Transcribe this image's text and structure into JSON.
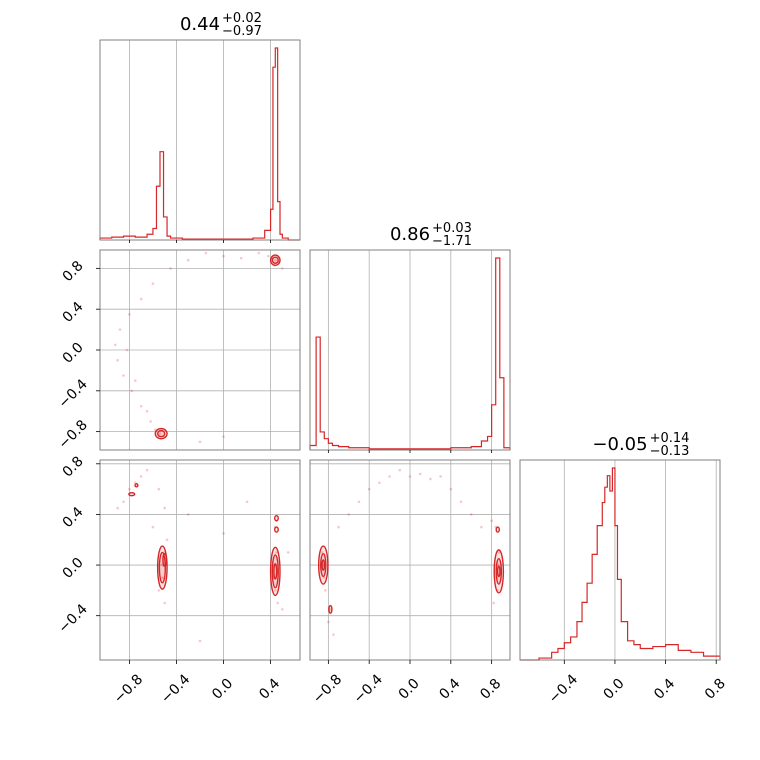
{
  "chart_data": {
    "type": "corner",
    "color": "#d62728",
    "grid": true,
    "parameters": [
      {
        "title_value": "0.44",
        "title_plus": "+0.02",
        "title_minus": "−0.97",
        "range": [
          -1.05,
          0.65
        ]
      },
      {
        "title_value": "0.86",
        "title_plus": "+0.03",
        "title_minus": "−1.71",
        "range": [
          -0.98,
          0.98
        ]
      },
      {
        "title_value": "−0.05",
        "title_plus": "+0.14",
        "title_minus": "−0.13",
        "range": [
          -0.75,
          0.83
        ]
      }
    ],
    "axis_ticks": {
      "p0": {
        "values": [
          -0.8,
          -0.4,
          0.0,
          0.4
        ],
        "labels": [
          "−0.8",
          "−0.4",
          "0.0",
          "0.4"
        ]
      },
      "p1": {
        "values": [
          -0.8,
          -0.4,
          0.0,
          0.4,
          0.8
        ],
        "labels": [
          "−0.8",
          "−0.4",
          "0.0",
          "0.4",
          "0.8"
        ]
      },
      "p2_x": {
        "values": [
          -0.4,
          0.0,
          0.4,
          0.8
        ],
        "labels": [
          "−0.4",
          "0.0",
          "0.4",
          "0.8"
        ]
      },
      "p2_y": {
        "values": [
          -0.4,
          0.0,
          0.4,
          0.8
        ],
        "labels": [
          "−0.4",
          "0.0",
          "0.4",
          "0.8"
        ]
      }
    },
    "histograms": {
      "p0": {
        "bins": [
          -1.05,
          -0.95,
          -0.85,
          -0.75,
          -0.65,
          -0.6,
          -0.57,
          -0.54,
          -0.51,
          -0.48,
          -0.45,
          -0.35,
          -0.25,
          -0.1,
          0.1,
          0.25,
          0.35,
          0.4,
          0.42,
          0.44,
          0.46,
          0.48,
          0.5,
          0.55,
          0.65
        ],
        "counts": [
          0.01,
          0.015,
          0.02,
          0.015,
          0.03,
          0.06,
          0.28,
          0.46,
          0.12,
          0.02,
          0.01,
          0.005,
          0.005,
          0.005,
          0.005,
          0.01,
          0.05,
          0.16,
          0.9,
          1.0,
          0.2,
          0.03,
          0.01,
          0.0
        ]
      },
      "p1": {
        "bins": [
          -0.98,
          -0.92,
          -0.88,
          -0.84,
          -0.8,
          -0.76,
          -0.7,
          -0.6,
          -0.4,
          -0.2,
          0.0,
          0.2,
          0.4,
          0.6,
          0.7,
          0.76,
          0.8,
          0.84,
          0.88,
          0.92,
          0.98
        ],
        "counts": [
          0.02,
          0.5,
          0.08,
          0.05,
          0.03,
          0.02,
          0.015,
          0.01,
          0.005,
          0.005,
          0.005,
          0.005,
          0.01,
          0.015,
          0.04,
          0.06,
          0.2,
          0.85,
          0.32,
          0.01
        ]
      },
      "p2": {
        "bins": [
          -0.75,
          -0.6,
          -0.5,
          -0.45,
          -0.4,
          -0.35,
          -0.3,
          -0.26,
          -0.22,
          -0.18,
          -0.14,
          -0.1,
          -0.08,
          -0.06,
          -0.04,
          -0.02,
          0.0,
          0.02,
          0.05,
          0.1,
          0.15,
          0.2,
          0.3,
          0.4,
          0.5,
          0.6,
          0.7,
          0.83
        ],
        "counts": [
          0.0,
          0.01,
          0.04,
          0.06,
          0.09,
          0.12,
          0.2,
          0.3,
          0.4,
          0.55,
          0.7,
          0.82,
          0.9,
          0.96,
          0.88,
          1.0,
          0.7,
          0.42,
          0.2,
          0.1,
          0.08,
          0.06,
          0.07,
          0.08,
          0.05,
          0.04,
          0.02
        ]
      }
    },
    "scatter": {
      "p1_vs_p0": [
        [
          0.44,
          0.88
        ],
        [
          0.41,
          0.9
        ],
        [
          0.47,
          0.86
        ],
        [
          0.38,
          0.92
        ],
        [
          0.43,
          0.83
        ],
        [
          -0.54,
          -0.82
        ],
        [
          -0.5,
          -0.85
        ],
        [
          -0.58,
          -0.78
        ],
        [
          -0.62,
          -0.7
        ],
        [
          -0.7,
          -0.55
        ],
        [
          -0.78,
          -0.4
        ],
        [
          -0.85,
          -0.25
        ],
        [
          -0.9,
          -0.1
        ],
        [
          -0.92,
          0.05
        ],
        [
          -0.88,
          0.2
        ],
        [
          -0.8,
          0.35
        ],
        [
          -0.7,
          0.5
        ],
        [
          -0.6,
          0.65
        ],
        [
          -0.45,
          0.8
        ],
        [
          -0.3,
          0.88
        ],
        [
          -0.15,
          0.95
        ],
        [
          0.0,
          0.92
        ],
        [
          0.15,
          0.9
        ],
        [
          0.3,
          0.95
        ],
        [
          -0.65,
          -0.6
        ],
        [
          -0.75,
          -0.3
        ],
        [
          -0.82,
          0.0
        ],
        [
          -0.2,
          -0.9
        ],
        [
          0.0,
          -0.85
        ],
        [
          0.5,
          0.8
        ]
      ],
      "p2_vs_p0": [
        [
          -0.52,
          0.0
        ],
        [
          -0.5,
          0.1
        ],
        [
          -0.52,
          -0.1
        ],
        [
          -0.55,
          -0.2
        ],
        [
          -0.5,
          -0.3
        ],
        [
          -0.48,
          0.2
        ],
        [
          0.44,
          0.0
        ],
        [
          0.45,
          0.1
        ],
        [
          0.43,
          -0.1
        ],
        [
          0.44,
          -0.2
        ],
        [
          0.46,
          -0.3
        ],
        [
          0.44,
          0.3
        ],
        [
          0.45,
          0.35
        ],
        [
          -0.75,
          0.65
        ],
        [
          -0.7,
          0.7
        ],
        [
          -0.8,
          0.6
        ],
        [
          -0.85,
          0.5
        ],
        [
          -0.9,
          0.45
        ],
        [
          -0.65,
          0.75
        ],
        [
          -0.55,
          0.6
        ],
        [
          -0.5,
          0.45
        ],
        [
          -0.6,
          0.3
        ],
        [
          0.0,
          0.25
        ],
        [
          0.2,
          0.5
        ],
        [
          -0.2,
          -0.6
        ],
        [
          0.5,
          -0.35
        ],
        [
          0.55,
          0.1
        ],
        [
          -0.3,
          0.4
        ]
      ],
      "p2_vs_p1": [
        [
          -0.85,
          0.0
        ],
        [
          -0.86,
          0.1
        ],
        [
          -0.84,
          -0.1
        ],
        [
          -0.83,
          -0.2
        ],
        [
          -0.78,
          -0.35
        ],
        [
          0.86,
          0.0
        ],
        [
          0.87,
          0.1
        ],
        [
          0.85,
          -0.1
        ],
        [
          0.86,
          -0.2
        ],
        [
          0.84,
          0.3
        ],
        [
          -0.7,
          0.3
        ],
        [
          -0.6,
          0.4
        ],
        [
          -0.5,
          0.5
        ],
        [
          -0.4,
          0.6
        ],
        [
          -0.3,
          0.65
        ],
        [
          -0.2,
          0.7
        ],
        [
          -0.1,
          0.75
        ],
        [
          0.0,
          0.7
        ],
        [
          0.1,
          0.72
        ],
        [
          0.2,
          0.68
        ],
        [
          0.3,
          0.7
        ],
        [
          0.4,
          0.6
        ],
        [
          0.5,
          0.5
        ],
        [
          0.6,
          0.4
        ],
        [
          0.7,
          0.3
        ],
        [
          0.8,
          0.35
        ],
        [
          -0.8,
          -0.45
        ],
        [
          -0.75,
          -0.55
        ],
        [
          0.82,
          -0.3
        ]
      ]
    },
    "contours": {
      "p1_vs_p0": [
        {
          "cx": 0.44,
          "cy": 0.88,
          "rx": 0.04,
          "ry": 0.05
        },
        {
          "cx": 0.44,
          "cy": 0.88,
          "rx": 0.025,
          "ry": 0.03
        },
        {
          "cx": -0.53,
          "cy": -0.82,
          "rx": 0.05,
          "ry": 0.05
        },
        {
          "cx": -0.53,
          "cy": -0.82,
          "rx": 0.03,
          "ry": 0.03
        }
      ],
      "p2_vs_p0": [
        {
          "cx": -0.52,
          "cy": -0.02,
          "rx": 0.04,
          "ry": 0.17
        },
        {
          "cx": -0.52,
          "cy": -0.02,
          "rx": 0.025,
          "ry": 0.12
        },
        {
          "cx": -0.5,
          "cy": 0.04,
          "rx": 0.015,
          "ry": 0.05
        },
        {
          "cx": 0.44,
          "cy": -0.05,
          "rx": 0.04,
          "ry": 0.19
        },
        {
          "cx": 0.44,
          "cy": -0.05,
          "rx": 0.025,
          "ry": 0.13
        },
        {
          "cx": 0.44,
          "cy": -0.05,
          "rx": 0.012,
          "ry": 0.06
        },
        {
          "cx": 0.45,
          "cy": 0.28,
          "rx": 0.015,
          "ry": 0.02
        },
        {
          "cx": 0.45,
          "cy": 0.37,
          "rx": 0.015,
          "ry": 0.02
        },
        {
          "cx": -0.78,
          "cy": 0.56,
          "rx": 0.025,
          "ry": 0.012
        },
        {
          "cx": -0.74,
          "cy": 0.63,
          "rx": 0.012,
          "ry": 0.012
        }
      ],
      "p2_vs_p1": [
        {
          "cx": -0.85,
          "cy": 0.0,
          "rx": 0.045,
          "ry": 0.15
        },
        {
          "cx": -0.85,
          "cy": 0.0,
          "rx": 0.025,
          "ry": 0.09
        },
        {
          "cx": -0.85,
          "cy": 0.0,
          "rx": 0.012,
          "ry": 0.04
        },
        {
          "cx": 0.87,
          "cy": -0.05,
          "rx": 0.045,
          "ry": 0.17
        },
        {
          "cx": 0.87,
          "cy": -0.05,
          "rx": 0.025,
          "ry": 0.1
        },
        {
          "cx": 0.87,
          "cy": -0.05,
          "rx": 0.012,
          "ry": 0.04
        },
        {
          "cx": 0.86,
          "cy": 0.28,
          "rx": 0.015,
          "ry": 0.02
        },
        {
          "cx": -0.78,
          "cy": -0.35,
          "rx": 0.015,
          "ry": 0.03
        }
      ]
    }
  }
}
